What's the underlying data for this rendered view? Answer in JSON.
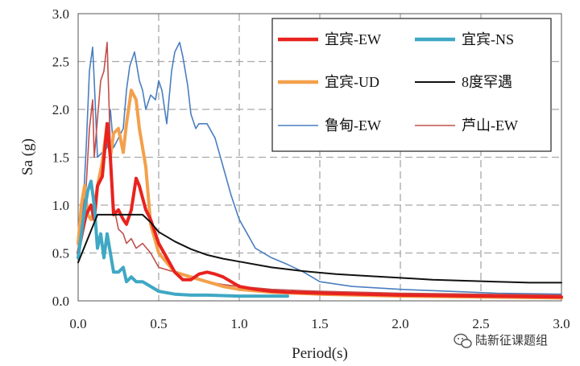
{
  "chart_data": {
    "type": "line",
    "title": "",
    "xlabel": "Period(s)",
    "ylabel": "Sa (g)",
    "xlim": [
      0,
      3
    ],
    "ylim": [
      0,
      3
    ],
    "x_ticks": [
      "0.0",
      "0.5",
      "1.0",
      "1.5",
      "2.0",
      "2.5",
      "3.0"
    ],
    "y_ticks": [
      "0.0",
      "0.5",
      "1.0",
      "1.5",
      "2.0",
      "2.5",
      "3.0"
    ],
    "grid": "dashed",
    "legend_position": "top-right",
    "series": [
      {
        "name": "宜宾-EW",
        "color": "#e8231f",
        "width": 4,
        "x": [
          0,
          0.03,
          0.05,
          0.08,
          0.1,
          0.12,
          0.15,
          0.18,
          0.2,
          0.22,
          0.25,
          0.28,
          0.3,
          0.33,
          0.36,
          0.38,
          0.42,
          0.45,
          0.5,
          0.55,
          0.6,
          0.65,
          0.7,
          0.75,
          0.8,
          0.85,
          0.9,
          0.95,
          1.0,
          1.1,
          1.2,
          1.3,
          1.5,
          2.0,
          2.5,
          3.0
        ],
        "values": [
          0.5,
          0.75,
          0.9,
          1.0,
          0.85,
          1.2,
          1.3,
          1.85,
          1.5,
          0.9,
          0.95,
          0.85,
          0.8,
          0.95,
          1.28,
          1.2,
          0.95,
          0.85,
          0.6,
          0.45,
          0.3,
          0.22,
          0.22,
          0.28,
          0.3,
          0.28,
          0.25,
          0.2,
          0.15,
          0.12,
          0.1,
          0.09,
          0.08,
          0.06,
          0.05,
          0.04
        ]
      },
      {
        "name": "宜宾-NS",
        "color": "#3fa8c4",
        "width": 4,
        "x": [
          0,
          0.02,
          0.04,
          0.06,
          0.08,
          0.1,
          0.12,
          0.14,
          0.16,
          0.18,
          0.2,
          0.22,
          0.25,
          0.28,
          0.3,
          0.33,
          0.36,
          0.4,
          0.45,
          0.5,
          0.6,
          0.7,
          0.8,
          1.0,
          1.2,
          1.3
        ],
        "values": [
          0.45,
          0.7,
          0.95,
          1.15,
          1.25,
          1.0,
          0.55,
          0.7,
          0.45,
          0.7,
          0.5,
          0.3,
          0.3,
          0.35,
          0.2,
          0.25,
          0.2,
          0.2,
          0.15,
          0.1,
          0.07,
          0.06,
          0.06,
          0.05,
          0.05,
          0.05
        ]
      },
      {
        "name": "宜宾-UD",
        "color": "#f3a04c",
        "width": 4,
        "x": [
          0,
          0.02,
          0.04,
          0.06,
          0.08,
          0.1,
          0.12,
          0.15,
          0.18,
          0.2,
          0.22,
          0.25,
          0.28,
          0.3,
          0.33,
          0.36,
          0.38,
          0.42,
          0.45,
          0.5,
          0.55,
          0.6,
          0.7,
          0.8,
          0.9,
          1.0,
          1.2,
          1.5,
          2.0,
          2.5,
          3.0
        ],
        "values": [
          0.6,
          1.0,
          1.2,
          0.9,
          0.85,
          0.95,
          1.2,
          1.45,
          1.85,
          1.5,
          1.75,
          1.8,
          1.55,
          1.85,
          2.2,
          2.1,
          1.8,
          1.4,
          0.8,
          0.5,
          0.4,
          0.3,
          0.25,
          0.2,
          0.15,
          0.12,
          0.09,
          0.07,
          0.05,
          0.04,
          0.03
        ]
      },
      {
        "name": "8度罕遇",
        "color": "#111111",
        "width": 2,
        "x": [
          0,
          0.12,
          0.15,
          0.2,
          0.3,
          0.4,
          0.45,
          0.5,
          0.6,
          0.7,
          0.8,
          0.9,
          1.0,
          1.2,
          1.4,
          1.6,
          1.8,
          2.0,
          2.2,
          2.4,
          2.6,
          2.8,
          3.0
        ],
        "values": [
          0.4,
          0.9,
          0.9,
          0.9,
          0.9,
          0.9,
          0.82,
          0.72,
          0.62,
          0.54,
          0.48,
          0.44,
          0.41,
          0.35,
          0.31,
          0.28,
          0.26,
          0.24,
          0.22,
          0.21,
          0.2,
          0.19,
          0.19
        ]
      },
      {
        "name": "鲁甸-EW",
        "color": "#4a7ebf",
        "width": 1.6,
        "x": [
          0,
          0.03,
          0.05,
          0.07,
          0.09,
          0.1,
          0.12,
          0.15,
          0.18,
          0.2,
          0.22,
          0.25,
          0.28,
          0.3,
          0.32,
          0.35,
          0.38,
          0.4,
          0.42,
          0.45,
          0.48,
          0.5,
          0.52,
          0.55,
          0.58,
          0.6,
          0.63,
          0.65,
          0.68,
          0.7,
          0.73,
          0.75,
          0.8,
          0.85,
          0.9,
          0.95,
          1.0,
          1.05,
          1.1,
          1.2,
          1.3,
          1.4,
          1.5,
          1.7,
          2.0,
          2.3,
          2.6,
          3.0
        ],
        "values": [
          0.6,
          0.95,
          1.6,
          2.4,
          2.65,
          2.3,
          1.5,
          1.55,
          1.6,
          2.0,
          1.6,
          1.7,
          1.8,
          2.2,
          2.45,
          2.6,
          2.3,
          2.2,
          2.0,
          2.15,
          2.1,
          2.3,
          2.2,
          1.85,
          2.4,
          2.6,
          2.7,
          2.55,
          2.25,
          1.95,
          1.8,
          1.85,
          1.85,
          1.7,
          1.4,
          1.1,
          0.85,
          0.7,
          0.55,
          0.45,
          0.38,
          0.3,
          0.2,
          0.15,
          0.12,
          0.1,
          0.08,
          0.07
        ]
      },
      {
        "name": "芦山-EW",
        "color": "#c0504d",
        "width": 1.6,
        "x": [
          0,
          0.03,
          0.05,
          0.07,
          0.09,
          0.1,
          0.12,
          0.14,
          0.16,
          0.18,
          0.2,
          0.22,
          0.25,
          0.28,
          0.3,
          0.33,
          0.36,
          0.4,
          0.45,
          0.5,
          0.6,
          0.7,
          0.8,
          0.9,
          1.0,
          1.2,
          1.5,
          2.0,
          2.5,
          3.0
        ],
        "values": [
          0.6,
          0.9,
          1.2,
          1.8,
          2.1,
          1.5,
          1.9,
          2.3,
          2.4,
          2.7,
          1.6,
          1.0,
          0.75,
          0.7,
          0.6,
          0.65,
          0.55,
          0.6,
          0.5,
          0.35,
          0.3,
          0.25,
          0.2,
          0.17,
          0.15,
          0.12,
          0.1,
          0.08,
          0.07,
          0.06
        ]
      }
    ]
  },
  "watermark": {
    "text": "陆新征课题组"
  }
}
